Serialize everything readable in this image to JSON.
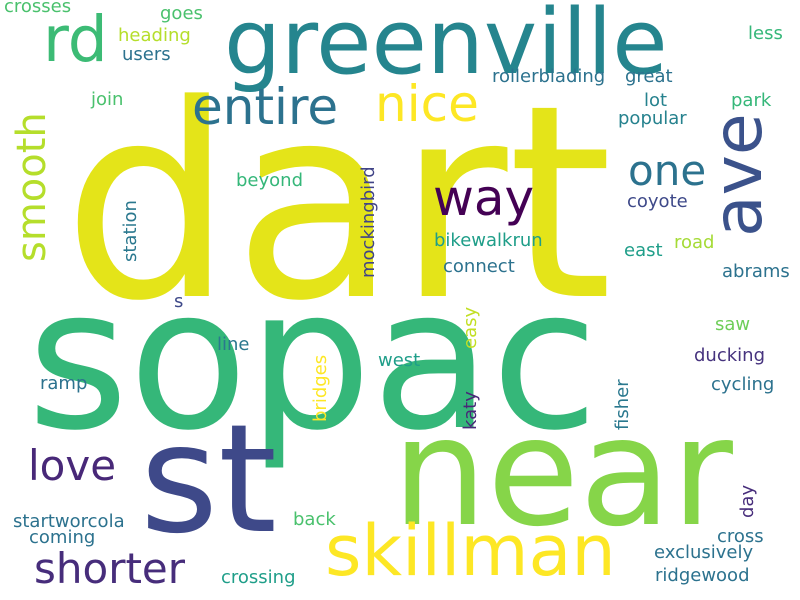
{
  "words": [
    {
      "text": "dart",
      "color": "#e4e419"
    },
    {
      "text": "sopac",
      "color": "#35b779"
    },
    {
      "text": "near",
      "color": "#86d549"
    },
    {
      "text": "st",
      "color": "#3e4989"
    },
    {
      "text": "greenville",
      "color": "#25858e"
    },
    {
      "text": "skillman",
      "color": "#fde725"
    },
    {
      "text": "ave",
      "color": "#3b528b"
    },
    {
      "text": "rd",
      "color": "#3cbb75"
    },
    {
      "text": "entire",
      "color": "#2c728e"
    },
    {
      "text": "nice",
      "color": "#fde725"
    },
    {
      "text": "shorter",
      "color": "#472d7b"
    },
    {
      "text": "love",
      "color": "#482878"
    },
    {
      "text": "smooth",
      "color": "#b5de2b"
    },
    {
      "text": "way",
      "color": "#440154"
    },
    {
      "text": "one",
      "color": "#2c728e"
    },
    {
      "text": "crosses",
      "color": "#4ac16d"
    },
    {
      "text": "goes",
      "color": "#4ac16d"
    },
    {
      "text": "heading",
      "color": "#b5de2b"
    },
    {
      "text": "users",
      "color": "#2c728e"
    },
    {
      "text": "less",
      "color": "#35b779"
    },
    {
      "text": "rollerblading",
      "color": "#2c728e"
    },
    {
      "text": "great",
      "color": "#2c728e"
    },
    {
      "text": "park",
      "color": "#35b779"
    },
    {
      "text": "join",
      "color": "#4ac16d"
    },
    {
      "text": "lot",
      "color": "#26828e"
    },
    {
      "text": "popular",
      "color": "#26828e"
    },
    {
      "text": "beyond",
      "color": "#35b779"
    },
    {
      "text": "coyote",
      "color": "#3e4989"
    },
    {
      "text": "station",
      "color": "#2a788e"
    },
    {
      "text": "mockingbird",
      "color": "#414487"
    },
    {
      "text": "bikewalkrun",
      "color": "#1f9e89"
    },
    {
      "text": "road",
      "color": "#a5db36"
    },
    {
      "text": "east",
      "color": "#1f9e89"
    },
    {
      "text": "connect",
      "color": "#2c728e"
    },
    {
      "text": "abrams",
      "color": "#2c728e"
    },
    {
      "text": "s",
      "color": "#3e4989"
    },
    {
      "text": "easy",
      "color": "#c2df23"
    },
    {
      "text": "saw",
      "color": "#6ece58"
    },
    {
      "text": "line",
      "color": "#2a788e"
    },
    {
      "text": "west",
      "color": "#1f9e89"
    },
    {
      "text": "ducking",
      "color": "#46337e"
    },
    {
      "text": "ramp",
      "color": "#2c728e"
    },
    {
      "text": "bridges",
      "color": "#fde725"
    },
    {
      "text": "katy",
      "color": "#482878"
    },
    {
      "text": "fisher",
      "color": "#2a788e"
    },
    {
      "text": "cycling",
      "color": "#2c728e"
    },
    {
      "text": "day",
      "color": "#472d7b"
    },
    {
      "text": "back",
      "color": "#4ac16d"
    },
    {
      "text": "startworcola",
      "color": "#2c728e"
    },
    {
      "text": "cross",
      "color": "#2c728e"
    },
    {
      "text": "coming",
      "color": "#2c728e"
    },
    {
      "text": "exclusively",
      "color": "#2c728e"
    },
    {
      "text": "crossing",
      "color": "#1f9e89"
    },
    {
      "text": "ridgewood",
      "color": "#2c728e"
    }
  ]
}
